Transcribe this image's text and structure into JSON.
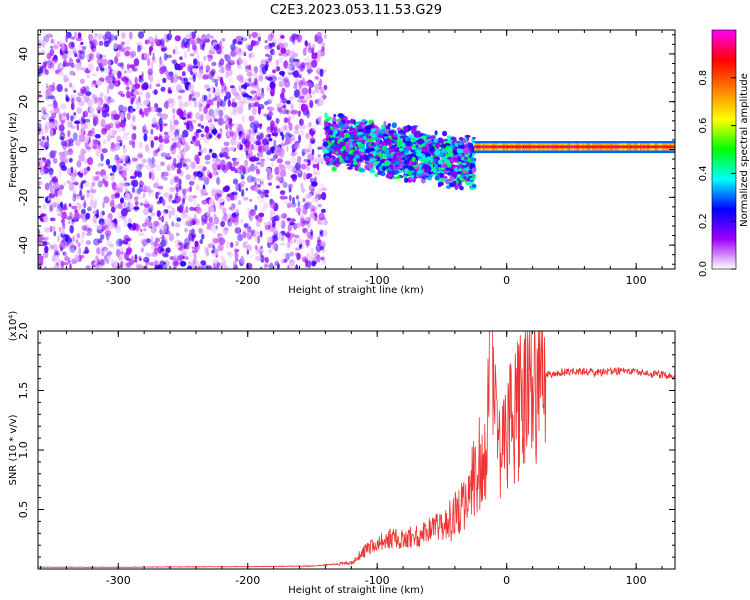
{
  "title": "C2E3.2023.053.11.53.G29",
  "chart_data": [
    {
      "type": "heatmap",
      "xlabel": "Height of straight line (km)",
      "ylabel": "Frequency (Hz)",
      "xlim": [
        -362,
        130
      ],
      "ylim": [
        -50,
        50
      ],
      "xticks": [
        -300,
        -200,
        -100,
        0,
        100
      ],
      "yticks": [
        -40,
        -20,
        0,
        20,
        40
      ],
      "colorbar": {
        "label": "Normalized spectral amplitude",
        "range": [
          0,
          1
        ],
        "ticks": [
          0.0,
          0.2,
          0.4,
          0.6,
          0.8
        ],
        "colors": [
          "#ffffff",
          "#a000ff",
          "#0000ff",
          "#00ffff",
          "#00ff00",
          "#ffff00",
          "#ff8000",
          "#ff0000",
          "#ff00ff"
        ]
      },
      "regions": [
        {
          "x_range": [
            -362,
            -140
          ],
          "freq_range": [
            -50,
            48
          ],
          "amplitude": 0.1,
          "pattern": "noise"
        },
        {
          "x_range": [
            -140,
            -25
          ],
          "freq_range": [
            -15,
            12
          ],
          "amplitude": 0.3,
          "pattern": "spread"
        },
        {
          "x_range": [
            -25,
            130
          ],
          "freq_range": [
            -1,
            3
          ],
          "amplitude": 0.9,
          "pattern": "narrow-line"
        }
      ],
      "grid": false
    },
    {
      "type": "line",
      "xlabel": "Height of straight line (km)",
      "ylabel": "SNR (10 * v/v)",
      "y_multiplier": "(x10⁴)",
      "xlim": [
        -362,
        130
      ],
      "ylim": [
        0,
        20000
      ],
      "xticks": [
        -300,
        -200,
        -100,
        0,
        100
      ],
      "yticks": [
        5000,
        10000,
        15000,
        20000
      ],
      "ytick_labels": [
        "0.5",
        "1.0",
        "1.5",
        "2.0"
      ],
      "color": "#ee3333",
      "series": [
        {
          "x": [
            -362,
            -300,
            -200,
            -150,
            -120,
            -110,
            -100,
            -90,
            -80,
            -70,
            -60,
            -50,
            -40,
            -30,
            -25,
            -20,
            -15,
            -12,
            -10,
            -5,
            0,
            5,
            10,
            15,
            20,
            25,
            30,
            40,
            50,
            60,
            70,
            80,
            90,
            100,
            110,
            120,
            130
          ],
          "values": [
            150,
            150,
            200,
            250,
            500,
            1500,
            2200,
            2500,
            2600,
            2800,
            3200,
            3700,
            4300,
            5800,
            7500,
            9000,
            11000,
            17000,
            13000,
            10500,
            11500,
            12500,
            13500,
            14500,
            15300,
            15900,
            16300,
            16500,
            16600,
            16600,
            16500,
            16600,
            16700,
            16600,
            16400,
            16300,
            16200
          ],
          "noise": 0.35
        }
      ],
      "grid": false
    }
  ]
}
